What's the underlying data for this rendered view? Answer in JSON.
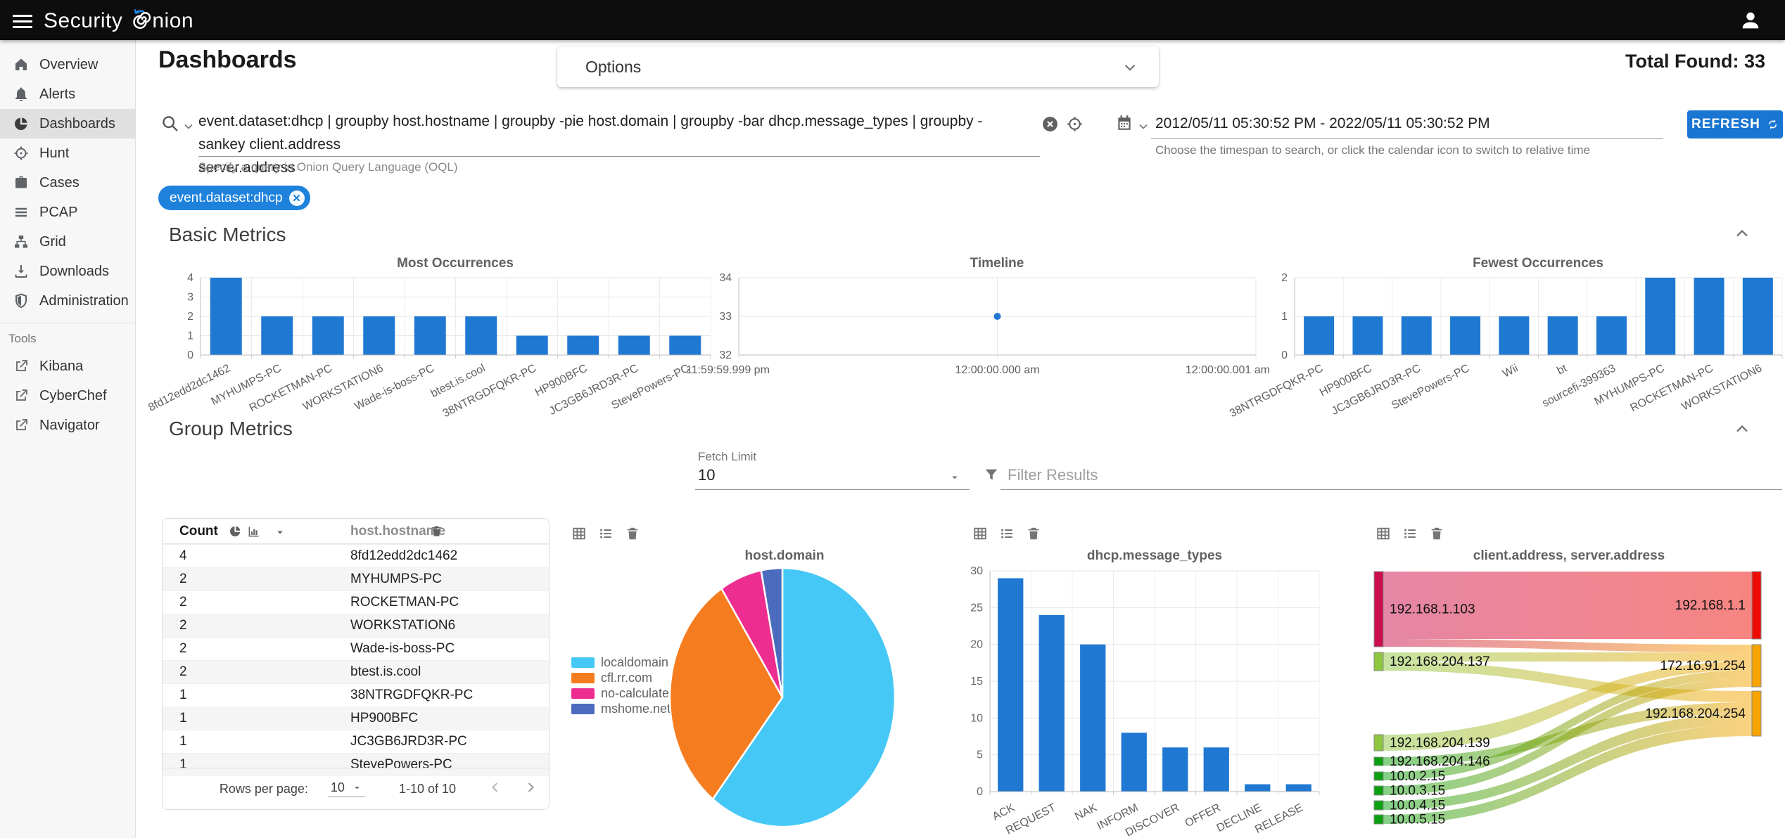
{
  "topbar": {
    "logo_prefix": "Security",
    "logo_suffix": "nion"
  },
  "sidebar": {
    "items": [
      {
        "label": "Overview",
        "icon": "home-icon",
        "selected": false
      },
      {
        "label": "Alerts",
        "icon": "bell-icon",
        "selected": false
      },
      {
        "label": "Dashboards",
        "icon": "pie-chart-icon",
        "selected": true
      },
      {
        "label": "Hunt",
        "icon": "crosshair-icon",
        "selected": false
      },
      {
        "label": "Cases",
        "icon": "briefcase-icon",
        "selected": false
      },
      {
        "label": "PCAP",
        "icon": "lines-icon",
        "selected": false
      },
      {
        "label": "Grid",
        "icon": "sitemap-icon",
        "selected": false
      },
      {
        "label": "Downloads",
        "icon": "download-icon",
        "selected": false
      },
      {
        "label": "Administration",
        "icon": "shield-icon",
        "selected": false
      }
    ],
    "tools_label": "Tools",
    "tools": [
      {
        "label": "Kibana",
        "icon": "external-link-icon"
      },
      {
        "label": "CyberChef",
        "icon": "external-link-icon"
      },
      {
        "label": "Navigator",
        "icon": "external-link-icon"
      }
    ]
  },
  "header": {
    "title": "Dashboards",
    "options_label": "Options",
    "total_found_label": "Total Found:",
    "total_found_value": "33"
  },
  "search": {
    "query": "event.dataset:dhcp | groupby host.hostname | groupby -pie host.domain | groupby -bar dhcp.message_types | groupby -sankey client.address server.address",
    "query_line1": "event.dataset:dhcp | groupby host.hostname | groupby -pie host.domain | groupby -bar dhcp.message_types | groupby -sankey client.address",
    "query_line2": "server.address",
    "hint": "Specify a query in Onion Query Language (OQL)",
    "filter_chip": "event.dataset:dhcp"
  },
  "timepicker": {
    "range": "2012/05/11 05:30:52 PM - 2022/05/11 05:30:52 PM",
    "hint": "Choose the timespan to search, or click the calendar icon to switch to relative time",
    "refresh_label": "REFRESH"
  },
  "sections": {
    "basic": "Basic Metrics",
    "group": "Group Metrics"
  },
  "group_controls": {
    "fetch_limit_label": "Fetch Limit",
    "fetch_limit_value": "10",
    "filter_placeholder": "Filter Results"
  },
  "table": {
    "columns": [
      "Count",
      "host.hostname"
    ],
    "rows": [
      {
        "count": "4",
        "hostname": "8fd12edd2dc1462"
      },
      {
        "count": "2",
        "hostname": "MYHUMPS-PC"
      },
      {
        "count": "2",
        "hostname": "ROCKETMAN-PC"
      },
      {
        "count": "2",
        "hostname": "WORKSTATION6"
      },
      {
        "count": "2",
        "hostname": "Wade-is-boss-PC"
      },
      {
        "count": "2",
        "hostname": "btest.is.cool"
      },
      {
        "count": "1",
        "hostname": "38NTRGDFQKR-PC"
      },
      {
        "count": "1",
        "hostname": "HP900BFC"
      },
      {
        "count": "1",
        "hostname": "JC3GB6JRD3R-PC"
      },
      {
        "count": "1",
        "hostname": "StevePowers-PC"
      }
    ],
    "footer": {
      "rows_per_page_label": "Rows per page:",
      "rows_per_page_value": "10",
      "range_label": "1-10 of 10"
    }
  },
  "chart_data": [
    {
      "id": "most_occurrences",
      "type": "bar",
      "title": "Most Occurrences",
      "categories": [
        "8fd12edd2dc1462",
        "MYHUMPS-PC",
        "ROCKETMAN-PC",
        "WORKSTATION6",
        "Wade-is-boss-PC",
        "btest.is.cool",
        "38NTRGDFQKR-PC",
        "HP900BFC",
        "JC3GB6JRD3R-PC",
        "StevePowers-PC"
      ],
      "values": [
        4,
        2,
        2,
        2,
        2,
        2,
        1,
        1,
        1,
        1
      ],
      "ylim": [
        0,
        4
      ],
      "yticks": [
        0,
        1,
        2,
        3,
        4
      ],
      "bar_color": "#1f78d2",
      "grid": true
    },
    {
      "id": "timeline",
      "type": "line",
      "title": "Timeline",
      "x_tick_labels": [
        "11:59:59.999 pm",
        "12:00:00.000 am",
        "12:00:00.001 am"
      ],
      "points": [
        {
          "x": "12:00:00.000 am",
          "y": 33
        }
      ],
      "ylim": [
        32,
        34
      ],
      "yticks": [
        34,
        33,
        32
      ],
      "point_color": "#1f78d2",
      "grid": true
    },
    {
      "id": "fewest_occurrences",
      "type": "bar",
      "title": "Fewest Occurrences",
      "categories": [
        "38NTRGDFQKR-PC",
        "HP900BFC",
        "JC3GB6JRD3R-PC",
        "StevePowers-PC",
        "Wii",
        "bt",
        "sourcefi-399363",
        "MYHUMPS-PC",
        "ROCKETMAN-PC",
        "WORKSTATION6"
      ],
      "values": [
        1,
        1,
        1,
        1,
        1,
        1,
        1,
        2,
        2,
        2
      ],
      "ylim": [
        0,
        2
      ],
      "yticks": [
        0,
        1,
        2
      ],
      "bar_color": "#1f78d2",
      "grid": true
    },
    {
      "id": "host_domain_pie",
      "type": "pie",
      "title": "host.domain",
      "labels": [
        "localdomain",
        "cfl.rr.com",
        "no-calculate.net",
        "mshome.net"
      ],
      "values": [
        20,
        10,
        2,
        1
      ],
      "colors": [
        "#45c8f5",
        "#f57d1f",
        "#ee2d90",
        "#4b6cbe"
      ],
      "legend_position": "left"
    },
    {
      "id": "dhcp_message_types",
      "type": "bar",
      "title": "dhcp.message_types",
      "categories": [
        "ACK",
        "REQUEST",
        "NAK",
        "INFORM",
        "DISCOVER",
        "OFFER",
        "DECLINE",
        "RELEASE"
      ],
      "values": [
        29,
        24,
        20,
        8,
        6,
        6,
        1,
        1
      ],
      "ylim": [
        0,
        30
      ],
      "yticks": [
        0,
        5,
        10,
        15,
        20,
        25,
        30
      ],
      "bar_color": "#1f78d2",
      "grid": true
    },
    {
      "id": "client_server_sankey",
      "type": "sankey",
      "title": "client.address, server.address",
      "nodes": [
        {
          "id": "192.168.1.103",
          "side": "left",
          "color": "#cb0e4d"
        },
        {
          "id": "192.168.204.137",
          "side": "left",
          "color": "#8dc63f"
        },
        {
          "id": "192.168.204.139",
          "side": "left",
          "color": "#8dc63f"
        },
        {
          "id": "192.168.204.146",
          "side": "left",
          "color": "#0aa00f"
        },
        {
          "id": "10.0.2.15",
          "side": "left",
          "color": "#0aa00f"
        },
        {
          "id": "10.0.3.15",
          "side": "left",
          "color": "#0aa00f"
        },
        {
          "id": "10.0.4.15",
          "side": "left",
          "color": "#0aa00f"
        },
        {
          "id": "10.0.5.15",
          "side": "left",
          "color": "#0aa00f"
        },
        {
          "id": "192.168.1.1",
          "side": "right",
          "color": "#ee0b04"
        },
        {
          "id": "172.16.91.254",
          "side": "right",
          "color": "#f7a400"
        },
        {
          "id": "192.168.204.254",
          "side": "right",
          "color": "#f7a400"
        }
      ],
      "links": [
        {
          "source": "192.168.1.103",
          "target": "192.168.1.1",
          "value": 20
        },
        {
          "source": "192.168.1.103",
          "target": "172.16.91.254",
          "value": 2
        },
        {
          "source": "192.168.204.137",
          "target": "172.16.91.254",
          "value": 2
        },
        {
          "source": "192.168.204.137",
          "target": "192.168.204.254",
          "value": 2
        },
        {
          "source": "192.168.204.139",
          "target": "172.16.91.254",
          "value": 2
        },
        {
          "source": "10.0.2.15",
          "target": "172.16.91.254",
          "value": 1
        },
        {
          "source": "10.0.3.15",
          "target": "172.16.91.254",
          "value": 1
        },
        {
          "source": "192.168.204.146",
          "target": "192.168.204.254",
          "value": 1
        },
        {
          "source": "10.0.4.15",
          "target": "192.168.204.254",
          "value": 1
        },
        {
          "source": "10.0.5.15",
          "target": "192.168.204.254",
          "value": 1
        }
      ]
    }
  ]
}
